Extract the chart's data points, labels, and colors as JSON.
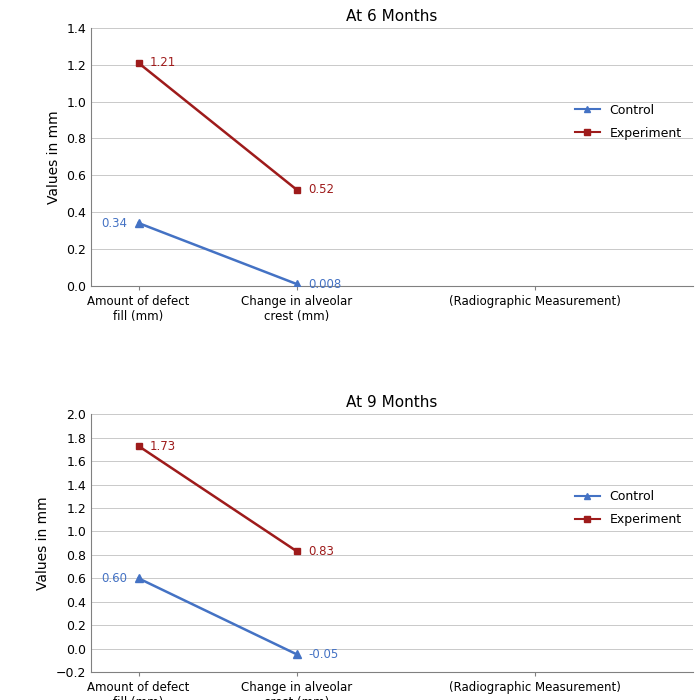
{
  "top": {
    "title": "At 6 Months",
    "ylabel": "Values in mm",
    "xtick_labels": [
      "Amount of defect\nfill (mm)",
      "Change in alveolar\ncrest (mm)",
      "(Radiographic Measurement)"
    ],
    "control_values": [
      0.34,
      0.008
    ],
    "experiment_values": [
      1.21,
      0.52
    ],
    "control_labels": [
      "0.34",
      "0.008"
    ],
    "experiment_labels": [
      "1.21",
      "0.52"
    ],
    "ylim": [
      0,
      1.4
    ],
    "yticks": [
      0,
      0.2,
      0.4,
      0.6,
      0.8,
      1.0,
      1.2,
      1.4
    ],
    "control_color": "#4472C4",
    "experiment_color": "#9E1B1B"
  },
  "bottom": {
    "title": "At 9 Months",
    "ylabel": "Values in mm",
    "xtick_labels": [
      "Amount of defect\nfill (mm)",
      "Change in alveolar\ncrest (mm)",
      "(Radiographic Measurement)"
    ],
    "control_values": [
      0.6,
      -0.05
    ],
    "experiment_values": [
      1.73,
      0.83
    ],
    "control_labels": [
      "0.60",
      "-0.05"
    ],
    "experiment_labels": [
      "1.73",
      "0.83"
    ],
    "ylim": [
      -0.2,
      2.0
    ],
    "yticks": [
      -0.2,
      0,
      0.2,
      0.4,
      0.6,
      0.8,
      1.0,
      1.2,
      1.4,
      1.6,
      1.8,
      2.0
    ],
    "control_color": "#4472C4",
    "experiment_color": "#9E1B1B"
  },
  "legend_control_color": "#4472C4",
  "legend_experiment_color": "#9E1B1B",
  "bg_color": "#FFFFFF",
  "x_data": [
    0,
    1
  ],
  "x_ticks": [
    0,
    1,
    2.5
  ],
  "x_lim": [
    -0.3,
    3.5
  ]
}
